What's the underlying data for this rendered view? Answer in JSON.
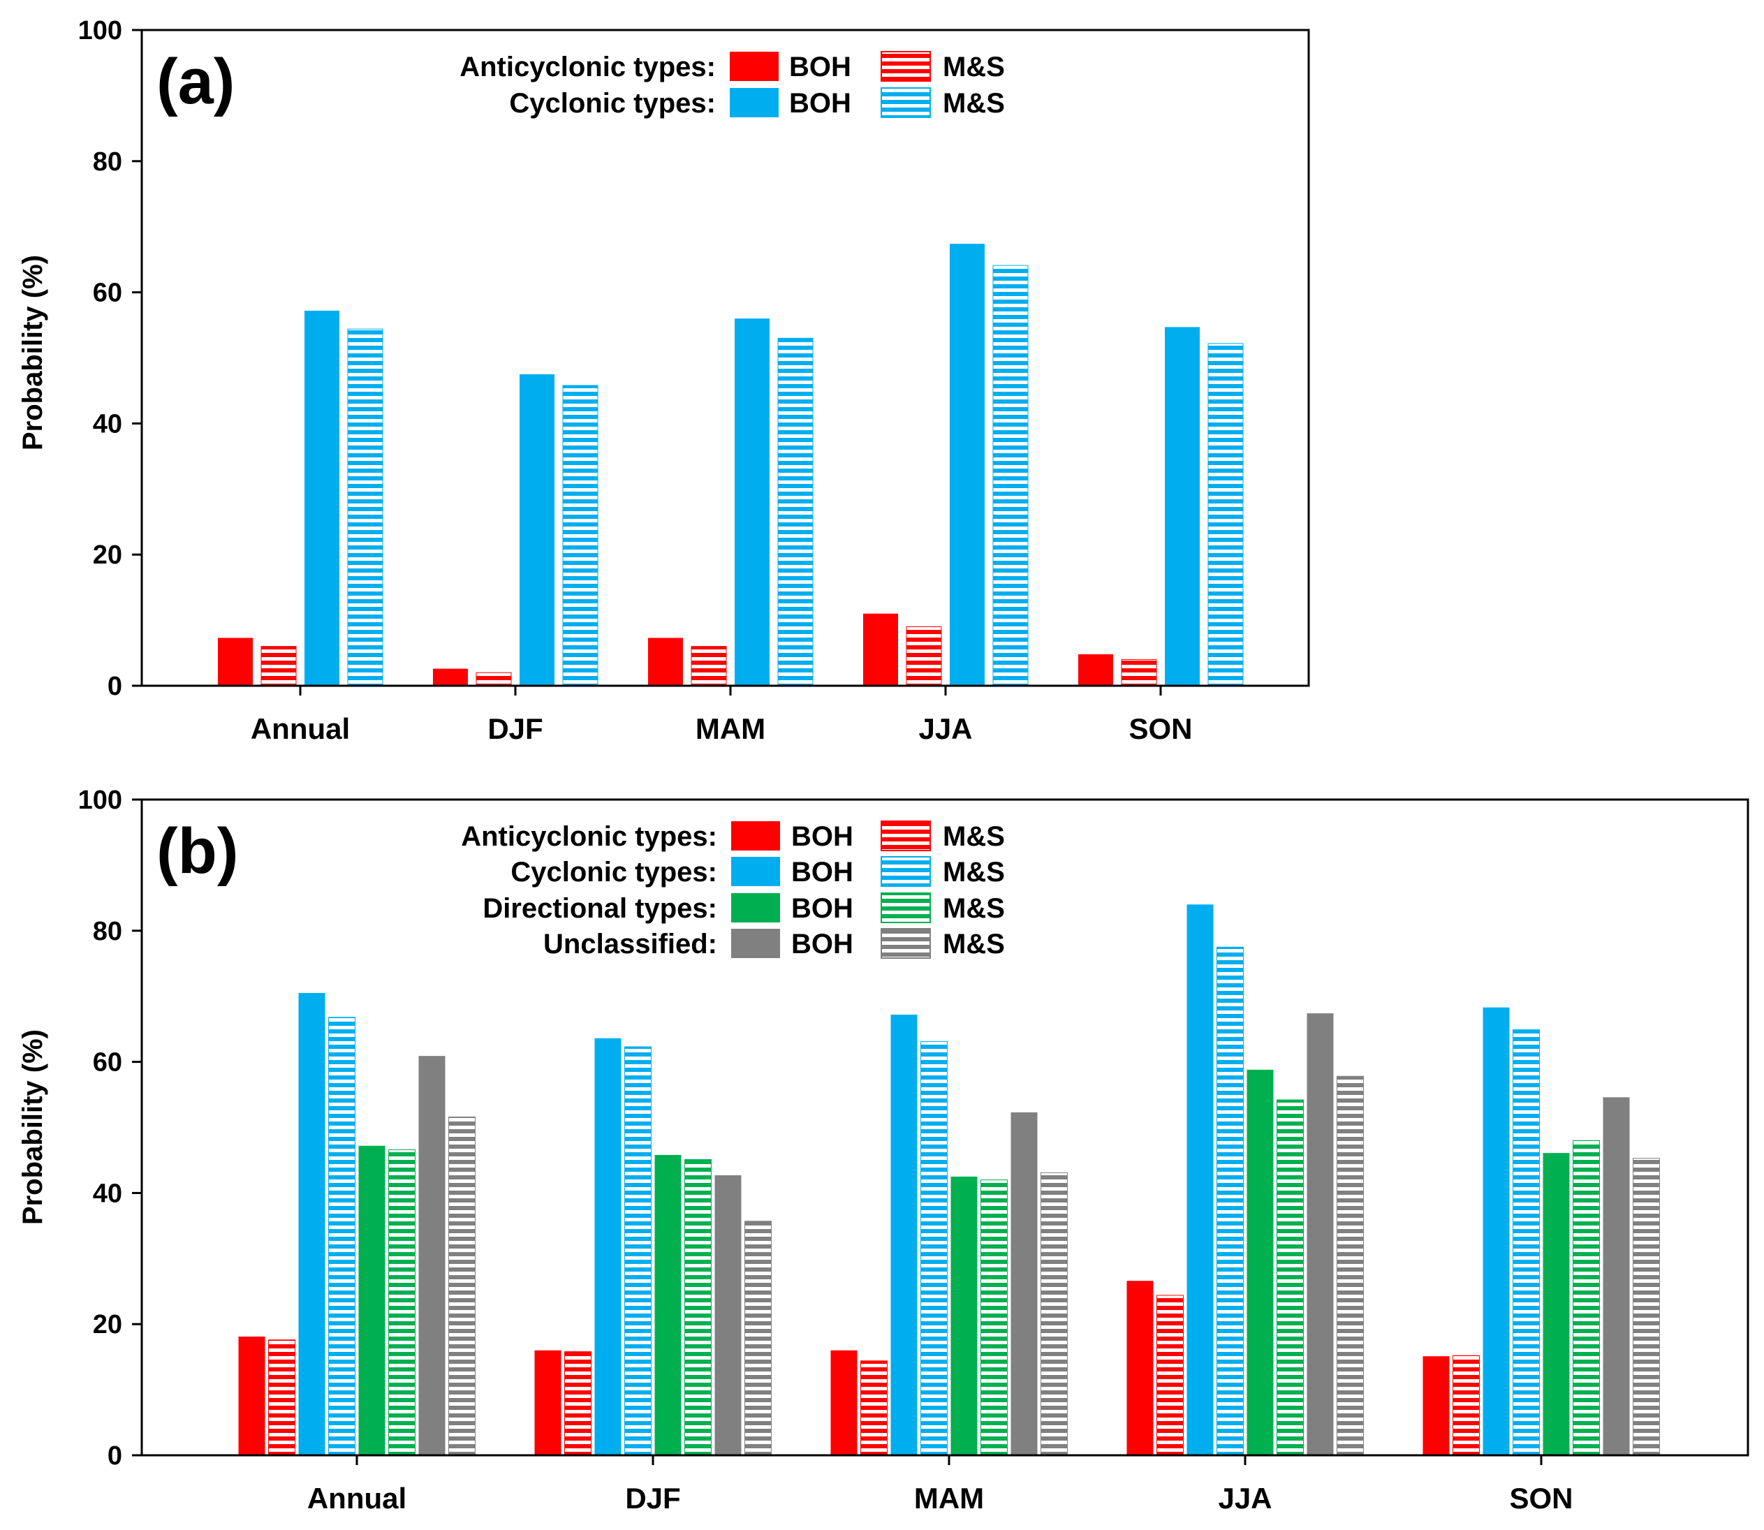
{
  "colors": {
    "anticyclonic": "#ff0000",
    "cyclonic": "#00aeef",
    "directional": "#00b050",
    "unclassified": "#808080"
  },
  "chart_data": [
    {
      "type": "bar",
      "panel_label": "(a)",
      "ylabel": "Probability (%)",
      "ylim": [
        0,
        100
      ],
      "yticks": [
        "0",
        "20",
        "40",
        "60",
        "80",
        "100"
      ],
      "categories": [
        "Annual",
        "DJF",
        "MAM",
        "JJA",
        "SON"
      ],
      "legend": {
        "placement": "top",
        "rows": [
          {
            "name": "Anticyclonic types:",
            "group": "anticyclonic",
            "boh": "BOH",
            "ms": "M&S"
          },
          {
            "name": "Cyclonic types:",
            "group": "cyclonic",
            "boh": "BOH",
            "ms": "M&S"
          }
        ]
      },
      "series": [
        {
          "name": "Anticyclonic types BOH",
          "group": "anticyclonic",
          "pattern": "solid",
          "values": [
            7.3,
            2.6,
            7.3,
            11.0,
            4.8
          ]
        },
        {
          "name": "Anticyclonic types M&S",
          "group": "anticyclonic",
          "pattern": "hatched",
          "values": [
            6.0,
            2.0,
            6.0,
            9.0,
            4.0
          ]
        },
        {
          "name": "Cyclonic types BOH",
          "group": "cyclonic",
          "pattern": "solid",
          "values": [
            57.2,
            47.5,
            56.0,
            67.4,
            54.7
          ]
        },
        {
          "name": "Cyclonic types M&S",
          "group": "cyclonic",
          "pattern": "hatched",
          "values": [
            54.4,
            45.8,
            53.0,
            64.1,
            52.2
          ]
        }
      ]
    },
    {
      "type": "bar",
      "panel_label": "(b)",
      "ylabel": "Probability (%)",
      "ylim": [
        0,
        100
      ],
      "yticks": [
        "0",
        "20",
        "40",
        "60",
        "80",
        "100"
      ],
      "categories": [
        "Annual",
        "DJF",
        "MAM",
        "JJA",
        "SON"
      ],
      "legend": {
        "placement": "top",
        "rows": [
          {
            "name": "Anticyclonic types:",
            "group": "anticyclonic",
            "boh": "BOH",
            "ms": "M&S"
          },
          {
            "name": "Cyclonic types:",
            "group": "cyclonic",
            "boh": "BOH",
            "ms": "M&S"
          },
          {
            "name": "Directional types:",
            "group": "directional",
            "boh": "BOH",
            "ms": "M&S"
          },
          {
            "name": "Unclassified:",
            "group": "unclassified",
            "boh": "BOH",
            "ms": "M&S"
          }
        ]
      },
      "series": [
        {
          "name": "Anticyclonic types BOH",
          "group": "anticyclonic",
          "pattern": "solid",
          "values": [
            18.1,
            16.0,
            16.0,
            26.6,
            15.1
          ]
        },
        {
          "name": "Anticyclonic types M&S",
          "group": "anticyclonic",
          "pattern": "hatched",
          "values": [
            17.6,
            15.8,
            14.4,
            24.4,
            15.2
          ]
        },
        {
          "name": "Cyclonic types BOH",
          "group": "cyclonic",
          "pattern": "solid",
          "values": [
            70.5,
            63.6,
            67.2,
            84.0,
            68.3
          ]
        },
        {
          "name": "Cyclonic types M&S",
          "group": "cyclonic",
          "pattern": "hatched",
          "values": [
            66.8,
            62.3,
            63.1,
            77.5,
            64.9
          ]
        },
        {
          "name": "Directional types BOH",
          "group": "directional",
          "pattern": "solid",
          "values": [
            47.2,
            45.8,
            42.5,
            58.8,
            46.1
          ]
        },
        {
          "name": "Directional types M&S",
          "group": "directional",
          "pattern": "hatched",
          "values": [
            46.6,
            45.1,
            42.0,
            54.2,
            48.0
          ]
        },
        {
          "name": "Unclassified BOH",
          "group": "unclassified",
          "pattern": "solid",
          "values": [
            60.9,
            42.7,
            52.3,
            67.4,
            54.6
          ]
        },
        {
          "name": "Unclassified M&S",
          "group": "unclassified",
          "pattern": "hatched",
          "values": [
            51.6,
            35.7,
            43.1,
            57.8,
            45.3
          ]
        }
      ]
    }
  ]
}
